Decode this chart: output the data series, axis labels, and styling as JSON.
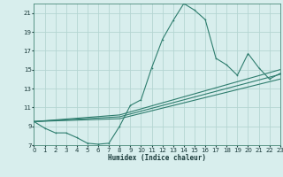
{
  "xlabel": "Humidex (Indice chaleur)",
  "bg_color": "#d8eeed",
  "grid_color": "#b5d5d2",
  "line_color": "#2e7d6e",
  "xlim": [
    0,
    23
  ],
  "ylim": [
    7,
    22
  ],
  "xticks": [
    0,
    1,
    2,
    3,
    4,
    5,
    6,
    7,
    8,
    9,
    10,
    11,
    12,
    13,
    14,
    15,
    16,
    17,
    18,
    19,
    20,
    21,
    22,
    23
  ],
  "yticks": [
    7,
    9,
    11,
    13,
    15,
    17,
    19,
    21
  ],
  "main_x": [
    0,
    1,
    2,
    3,
    4,
    5,
    6,
    7,
    8,
    9,
    10,
    11,
    12,
    13,
    14,
    15,
    16,
    17,
    18,
    19,
    20,
    21,
    22,
    23
  ],
  "main_y": [
    9.5,
    8.8,
    8.3,
    8.3,
    7.8,
    7.2,
    7.1,
    7.2,
    9.0,
    11.2,
    11.8,
    15.2,
    18.2,
    20.2,
    22.0,
    21.3,
    20.3,
    16.2,
    15.5,
    14.4,
    16.7,
    15.2,
    14.0,
    14.6
  ],
  "trend_lines": [
    {
      "x": [
        0,
        8,
        23
      ],
      "y": [
        9.5,
        10.2,
        15.0
      ]
    },
    {
      "x": [
        0,
        8,
        23
      ],
      "y": [
        9.5,
        10.0,
        14.5
      ]
    },
    {
      "x": [
        0,
        8,
        23
      ],
      "y": [
        9.5,
        9.8,
        14.0
      ]
    }
  ]
}
